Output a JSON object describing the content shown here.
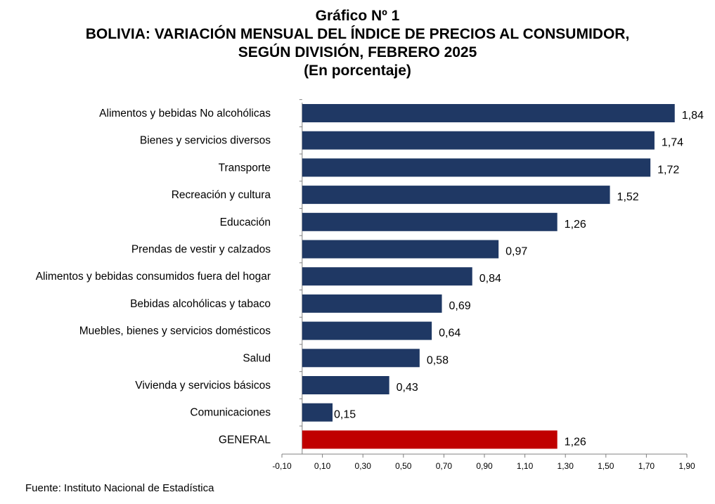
{
  "title": {
    "line1": "Gráfico Nº 1",
    "line2": "BOLIVIA: VARIACIÓN MENSUAL DEL ÍNDICE DE PRECIOS AL CONSUMIDOR,",
    "line3": "SEGÚN DIVISIÓN, FEBRERO 2025",
    "line4": "(En porcentaje)"
  },
  "source": "Fuente: Instituto Nacional de Estadística",
  "colors": {
    "bar": "#1f3864",
    "highlight": "#c00000",
    "axis": "#808080"
  },
  "chart_data": {
    "type": "bar",
    "orientation": "horizontal",
    "title": "BOLIVIA: VARIACIÓN MENSUAL DEL ÍNDICE DE PRECIOS AL CONSUMIDOR, SEGÚN DIVISIÓN, FEBRERO 2025",
    "subtitle": "(En porcentaje)",
    "categories": [
      "Alimentos y bebidas No alcohólicas",
      "Bienes y servicios diversos",
      "Transporte",
      "Recreación y cultura",
      "Educación",
      "Prendas de vestir y calzados",
      "Alimentos y bebidas consumidos fuera del hogar",
      "Bebidas alcohólicas y tabaco",
      "Muebles, bienes y servicios domésticos",
      "Salud",
      "Vivienda y servicios básicos",
      "Comunicaciones",
      "GENERAL"
    ],
    "values": [
      1.84,
      1.74,
      1.72,
      1.52,
      1.26,
      0.97,
      0.84,
      0.69,
      0.64,
      0.58,
      0.43,
      0.15,
      1.26
    ],
    "value_labels": [
      "1,84",
      "1,74",
      "1,72",
      "1,52",
      "1,26",
      "0,97",
      "0,84",
      "0,69",
      "0,64",
      "0,58",
      "0,43",
      "0,15",
      "1,26"
    ],
    "highlight_category": "GENERAL",
    "xlim": [
      -0.1,
      1.9
    ],
    "xticks": [
      -0.1,
      0.1,
      0.3,
      0.5,
      0.7,
      0.9,
      1.1,
      1.3,
      1.5,
      1.7,
      1.9
    ],
    "xtick_labels": [
      "-0,10",
      "0,10",
      "0,30",
      "0,50",
      "0,70",
      "0,90",
      "1,10",
      "1,30",
      "1,50",
      "1,70",
      "1,90"
    ],
    "grid": false,
    "legend": "none"
  }
}
